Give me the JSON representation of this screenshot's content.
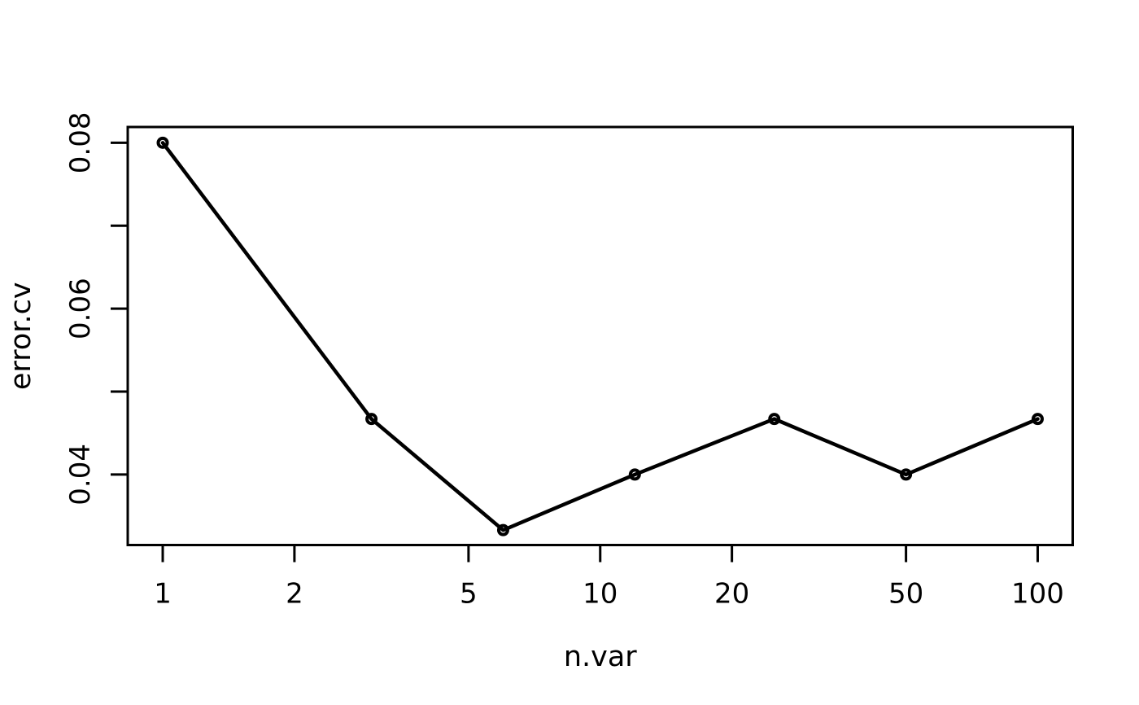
{
  "chart_data": {
    "type": "line",
    "title": "",
    "xlabel": "n.var",
    "ylabel": "error.cv",
    "x": [
      1,
      3,
      6,
      12,
      25,
      50,
      100
    ],
    "y": [
      0.08,
      0.0467,
      0.0333,
      0.04,
      0.0467,
      0.04,
      0.0467
    ],
    "series": [
      {
        "name": "error.cv",
        "x": [
          1,
          3,
          6,
          12,
          25,
          50,
          100
        ],
        "values": [
          0.08,
          0.0467,
          0.0333,
          0.04,
          0.0467,
          0.04,
          0.0467
        ]
      }
    ],
    "x_scale": "log10",
    "x_ticks": [
      1,
      2,
      5,
      10,
      20,
      50,
      100
    ],
    "x_tick_labels": [
      "1",
      "2",
      "5",
      "10",
      "20",
      "50",
      "100"
    ],
    "y_ticks": [
      0.04,
      0.05,
      0.06,
      0.07,
      0.08
    ],
    "y_tick_labels": [
      "0.04",
      "",
      "0.06",
      "",
      "0.08"
    ],
    "x_domain_log10": [
      -0.08,
      2.08
    ],
    "y_domain": [
      0.0315,
      0.0819
    ],
    "grid": false,
    "legend": "none",
    "marker": "open-circle",
    "line_color": "#000000",
    "marker_color": "#000000",
    "axis_color": "#000000",
    "background_color": "#ffffff"
  }
}
